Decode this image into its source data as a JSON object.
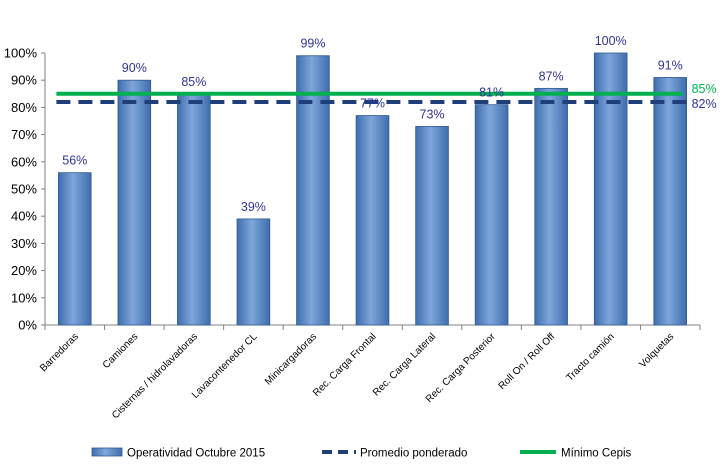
{
  "chart_data": {
    "type": "bar",
    "categories": [
      "Barredoras",
      "Camiones",
      "Cisternas / hidrolavadoras",
      "Lavacontenedor CL",
      "Minicargadoras",
      "Rec. Carga Frontal",
      "Rec. Carga Lateral",
      "Rec. Carga Posterior",
      "Roll On / Roll Off",
      "Tracto camión",
      "Volquetas"
    ],
    "values": [
      56,
      90,
      85,
      39,
      99,
      77,
      73,
      81,
      87,
      100,
      91
    ],
    "data_labels": [
      "56%",
      "90%",
      "85%",
      "39%",
      "99%",
      "77%",
      "73%",
      "81%",
      "87%",
      "100%",
      "91%"
    ],
    "ylim": [
      0,
      100
    ],
    "yticks": [
      "0%",
      "10%",
      "20%",
      "30%",
      "40%",
      "50%",
      "60%",
      "70%",
      "80%",
      "90%",
      "100%"
    ],
    "series": [
      {
        "name": "Operatividad Octubre 2015",
        "type": "bar",
        "color": "#4F81BD"
      },
      {
        "name": "Promedio ponderado",
        "type": "line",
        "value": 82,
        "label": "82%",
        "color": "#1F3F7A",
        "style": "dashed"
      },
      {
        "name": "Mínimo Cepis",
        "type": "line",
        "value": 85,
        "label": "85%",
        "color": "#00B050",
        "style": "solid"
      }
    ],
    "legend_position": "bottom",
    "grid": false
  }
}
